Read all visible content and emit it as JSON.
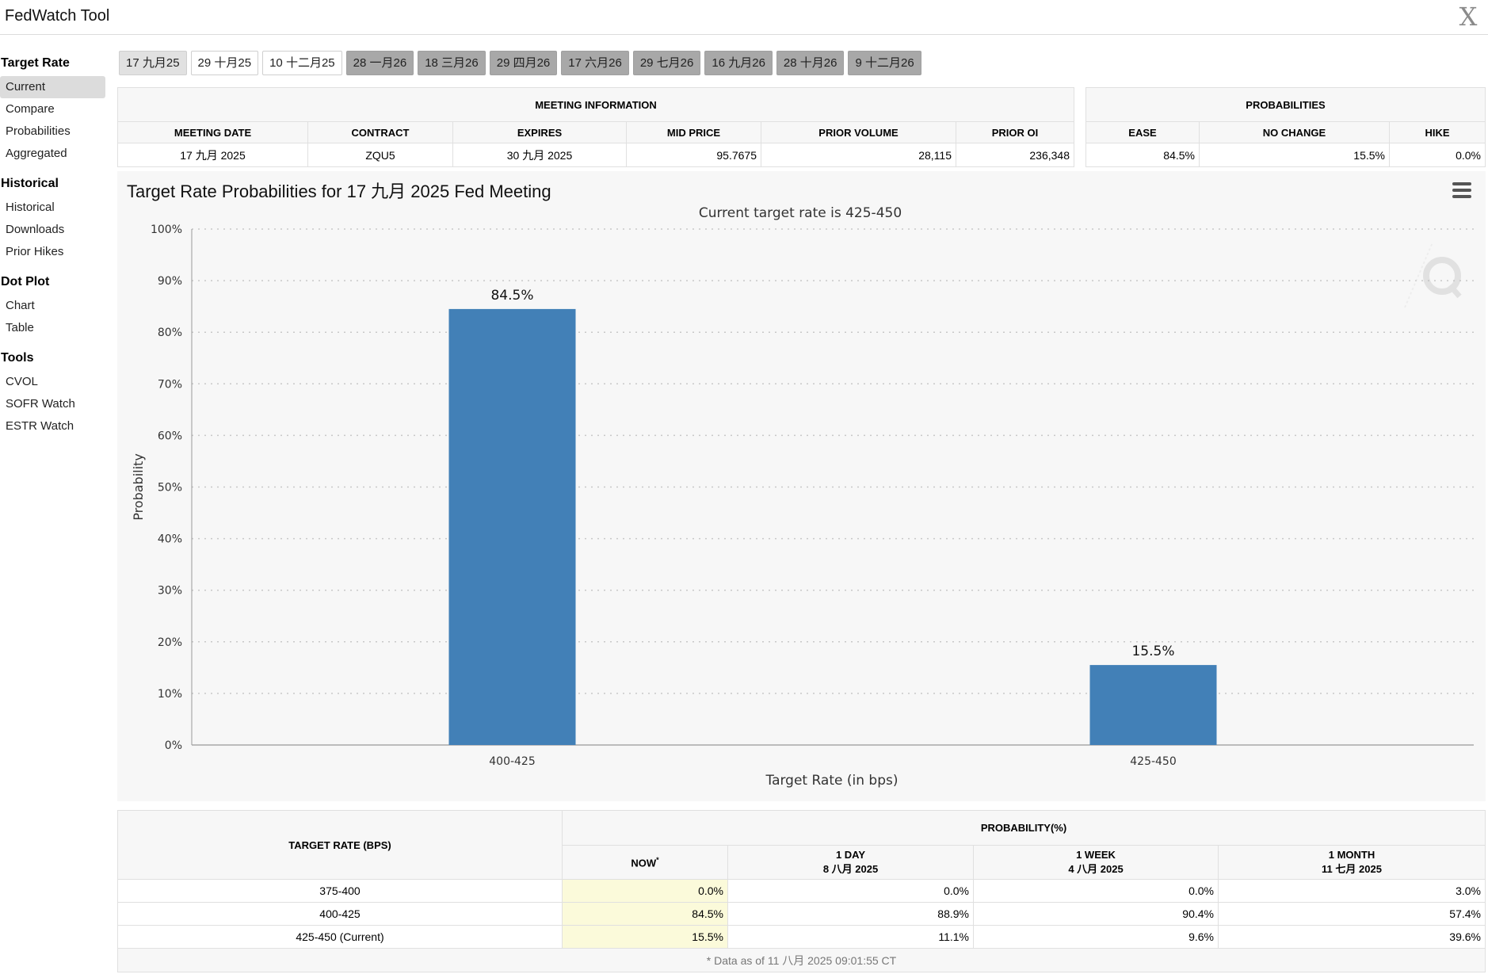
{
  "app": {
    "title": "FedWatch Tool",
    "close_glyph": "X"
  },
  "sidebar": {
    "sections": [
      {
        "heading": "Target Rate",
        "items": [
          "Current",
          "Compare",
          "Probabilities",
          "Aggregated"
        ]
      },
      {
        "heading": "Historical",
        "items": [
          "Historical",
          "Downloads",
          "Prior Hikes"
        ]
      },
      {
        "heading": "Dot Plot",
        "items": [
          "Chart",
          "Table"
        ]
      },
      {
        "heading": "Tools",
        "items": [
          "CVOL",
          "SOFR Watch",
          "ESTR Watch"
        ]
      }
    ],
    "active_item": "Current"
  },
  "meeting_tabs": [
    "17 九月25",
    "29 十月25",
    "10 十二月25",
    "28 一月26",
    "18 三月26",
    "29 四月26",
    "17 六月26",
    "29 七月26",
    "16 九月26",
    "28 十月26",
    "9 十二月26"
  ],
  "meeting_info": {
    "heading": "MEETING INFORMATION",
    "columns": [
      "MEETING DATE",
      "CONTRACT",
      "EXPIRES",
      "MID PRICE",
      "PRIOR VOLUME",
      "PRIOR OI"
    ],
    "values": [
      "17 九月 2025",
      "ZQU5",
      "30 九月 2025",
      "95.7675",
      "28,115",
      "236,348"
    ]
  },
  "probabilities": {
    "heading": "PROBABILITIES",
    "columns": [
      "EASE",
      "NO CHANGE",
      "HIKE"
    ],
    "values": [
      "84.5%",
      "15.5%",
      "0.0%"
    ]
  },
  "chart_data": {
    "type": "bar",
    "title": "Target Rate Probabilities for 17 九月 2025 Fed Meeting",
    "subtitle": "Current target rate is 425-450",
    "categories": [
      "400-425",
      "425-450"
    ],
    "values": [
      84.5,
      15.5
    ],
    "data_labels": [
      "84.5%",
      "15.5%"
    ],
    "xlabel": "Target Rate (in bps)",
    "ylabel": "Probability",
    "ylim": [
      0,
      100
    ],
    "yticks": [
      0,
      10,
      20,
      30,
      40,
      50,
      60,
      70,
      80,
      90,
      100
    ],
    "ytick_labels": [
      "0%",
      "10%",
      "20%",
      "30%",
      "40%",
      "50%",
      "60%",
      "70%",
      "80%",
      "90%",
      "100%"
    ],
    "grid": true,
    "bar_color": "#4280b7"
  },
  "detail_table": {
    "target_header": "TARGET RATE (BPS)",
    "prob_header": "PROBABILITY(%)",
    "columns": [
      {
        "line1": "NOW",
        "mark": "*",
        "line2": ""
      },
      {
        "line1": "1 DAY",
        "mark": "",
        "line2": "8 八月 2025"
      },
      {
        "line1": "1 WEEK",
        "mark": "",
        "line2": "4 八月 2025"
      },
      {
        "line1": "1 MONTH",
        "mark": "",
        "line2": "11 七月 2025"
      }
    ],
    "rows": [
      {
        "rate": "375-400",
        "values": [
          "0.0%",
          "0.0%",
          "0.0%",
          "3.0%"
        ]
      },
      {
        "rate": "400-425",
        "values": [
          "84.5%",
          "88.9%",
          "90.4%",
          "57.4%"
        ]
      },
      {
        "rate": "425-450 (Current)",
        "values": [
          "15.5%",
          "11.1%",
          "9.6%",
          "39.6%"
        ]
      }
    ],
    "footnote": "* Data as of 11 八月 2025 09:01:55 CT"
  },
  "colors": {
    "now_highlight": "#fbfada",
    "panel_bg": "#f7f7f7"
  }
}
